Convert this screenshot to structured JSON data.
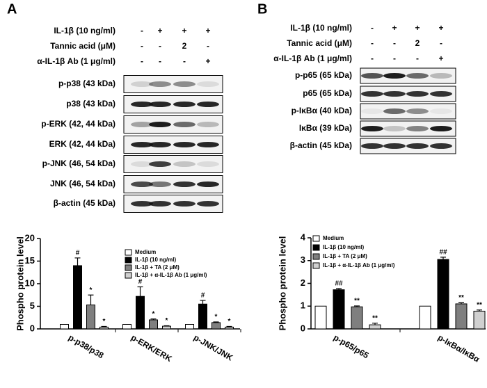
{
  "panels": [
    {
      "label": "A",
      "treatments": [
        {
          "label": "IL-1β (10 ng/ml)",
          "marks": [
            "-",
            "+",
            "+",
            "+"
          ]
        },
        {
          "label": "Tannic acid (μM)",
          "marks": [
            "-",
            "-",
            "2",
            "-"
          ]
        },
        {
          "label": "α-IL-1β Ab (1 μg/ml)",
          "marks": [
            "-",
            "-",
            "-",
            "+"
          ]
        }
      ],
      "blots": [
        "p-p38 (43 kDa)",
        "p38 (43 kDa)",
        "p-ERK (42, 44 kDa)",
        "ERK (42, 44 kDa)",
        "p-JNK (46, 54 kDa)",
        "JNK (46, 54 kDa)",
        "β-actin (45 kDa)"
      ]
    },
    {
      "label": "B",
      "treatments": [
        {
          "label": "IL-1β (10 ng/ml)",
          "marks": [
            "-",
            "+",
            "+",
            "+"
          ]
        },
        {
          "label": "Tannic acid (μM)",
          "marks": [
            "-",
            "-",
            "2",
            "-"
          ]
        },
        {
          "label": "α-IL-1β Ab (1 μg/ml)",
          "marks": [
            "-",
            "-",
            "-",
            "+"
          ]
        }
      ],
      "blots": [
        "p-p65 (65 kDa)",
        "p65 (65 kDa)",
        "p-IκBα (40 kDa)",
        "IκBα (39 kDa)",
        "β-actin (45 kDa)"
      ]
    }
  ],
  "chart_data": [
    {
      "type": "bar",
      "y_label": "Phospho protein level",
      "categories": [
        "p-p38/p38",
        "p-ERK/ERK",
        "p-JNK/JNK"
      ],
      "ylim": [
        0,
        20
      ],
      "yticks": [
        0,
        5,
        10,
        15,
        20
      ],
      "series": [
        {
          "name": "Medium",
          "color": "#ffffff",
          "values": [
            1,
            1,
            1
          ]
        },
        {
          "name": "IL-1β (10 ng/ml)",
          "color": "#000000",
          "values": [
            14,
            7.2,
            5.5
          ],
          "errors": [
            1.7,
            2.1,
            0.8
          ],
          "annotations": [
            "#",
            "#",
            "#"
          ]
        },
        {
          "name": "IL-1β + TA (2 μM)",
          "color": "#7f7f7f",
          "values": [
            5.3,
            2.0,
            1.4
          ],
          "errors": [
            2.2,
            0.2,
            0.15
          ],
          "annotations": [
            "*",
            "*",
            "*"
          ]
        },
        {
          "name": "IL-1β + α-IL-1β Ab (1 μg/ml)",
          "color": "#d0d0d0",
          "values": [
            0.4,
            0.6,
            0.4
          ],
          "errors": [
            0.15,
            0.1,
            0.15
          ],
          "annotations": [
            "*",
            "*",
            "*"
          ]
        }
      ]
    },
    {
      "type": "bar",
      "y_label": "Phospho protein level",
      "categories": [
        "p-p65/p65",
        "p-IκBα/IκBα"
      ],
      "ylim": [
        0,
        4
      ],
      "yticks": [
        0,
        1,
        2,
        3,
        4
      ],
      "series": [
        {
          "name": "Medium",
          "color": "#ffffff",
          "values": [
            1,
            1
          ]
        },
        {
          "name": "IL-1β (10 ng/ml)",
          "color": "#000000",
          "values": [
            1.72,
            3.05
          ],
          "errors": [
            0.05,
            0.1
          ],
          "annotations": [
            "##",
            "##"
          ]
        },
        {
          "name": "IL-1β + TA (2 μM)",
          "color": "#7f7f7f",
          "values": [
            0.97,
            1.1
          ],
          "errors": [
            0.04,
            0.05
          ],
          "annotations": [
            "**",
            "**"
          ]
        },
        {
          "name": "IL-1β + α-IL-1β Ab (1 μg/ml)",
          "color": "#d0d0d0",
          "values": [
            0.18,
            0.78
          ],
          "errors": [
            0.07,
            0.05
          ],
          "annotations": [
            "**",
            "**"
          ]
        }
      ]
    }
  ]
}
